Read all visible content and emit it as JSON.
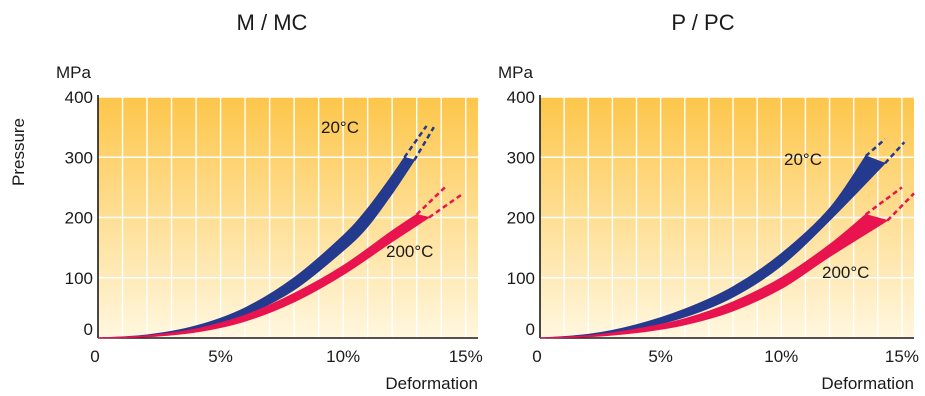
{
  "y_axis_title": "Pressure",
  "chart_data": [
    {
      "type": "area",
      "title": "M / MC",
      "xlabel": "Deformation",
      "ylabel": "MPa",
      "xlim": [
        0,
        15.5
      ],
      "ylim": [
        0,
        400
      ],
      "x_ticks": [
        "0",
        "5%",
        "10%",
        "15%"
      ],
      "y_ticks": [
        "0",
        "100",
        "200",
        "300",
        "400"
      ],
      "series": [
        {
          "name": "20°C",
          "color": "#243a8f",
          "upper": [
            [
              0,
              0
            ],
            [
              2,
              5
            ],
            [
              4,
              20
            ],
            [
              6,
              50
            ],
            [
              8,
              100
            ],
            [
              10,
              170
            ],
            [
              11,
              215
            ],
            [
              12,
              270
            ],
            [
              12.5,
              300
            ]
          ],
          "lower": [
            [
              0,
              0
            ],
            [
              2,
              3
            ],
            [
              4,
              14
            ],
            [
              6,
              38
            ],
            [
              8,
              80
            ],
            [
              10,
              145
            ],
            [
              11,
              185
            ],
            [
              12,
              240
            ],
            [
              12.9,
              295
            ]
          ],
          "ext_upper": [
            [
              12.5,
              300
            ],
            [
              13.4,
              352
            ]
          ],
          "ext_lower": [
            [
              12.9,
              295
            ],
            [
              13.7,
              350
            ]
          ]
        },
        {
          "name": "200°C",
          "color": "#e8134f",
          "upper": [
            [
              0,
              0
            ],
            [
              2,
              4
            ],
            [
              4,
              15
            ],
            [
              6,
              38
            ],
            [
              8,
              74
            ],
            [
              10,
              120
            ],
            [
              12,
              178
            ],
            [
              13,
              205
            ]
          ],
          "lower": [
            [
              0,
              0
            ],
            [
              2,
              2
            ],
            [
              4,
              10
            ],
            [
              6,
              28
            ],
            [
              8,
              60
            ],
            [
              10,
              105
            ],
            [
              12,
              160
            ],
            [
              13.5,
              200
            ]
          ],
          "ext_upper": [
            [
              13,
              205
            ],
            [
              14.2,
              252
            ]
          ],
          "ext_lower": [
            [
              13.5,
              200
            ],
            [
              14.9,
              240
            ]
          ]
        }
      ]
    },
    {
      "type": "area",
      "title": "P / PC",
      "xlabel": "Deformation",
      "ylabel": "MPa",
      "xlim": [
        0,
        15.5
      ],
      "ylim": [
        0,
        400
      ],
      "x_ticks": [
        "0",
        "5%",
        "10%",
        "15%"
      ],
      "y_ticks": [
        "0",
        "100",
        "200",
        "300",
        "400"
      ],
      "series": [
        {
          "name": "20°C",
          "color": "#243a8f",
          "upper": [
            [
              0,
              0
            ],
            [
              2,
              6
            ],
            [
              4,
              22
            ],
            [
              6,
              48
            ],
            [
              8,
              85
            ],
            [
              10,
              140
            ],
            [
              12,
              215
            ],
            [
              13.5,
              302
            ]
          ],
          "lower": [
            [
              0,
              0
            ],
            [
              2,
              4
            ],
            [
              4,
              15
            ],
            [
              6,
              35
            ],
            [
              8,
              68
            ],
            [
              10,
              120
            ],
            [
              12,
              195
            ],
            [
              14.3,
              290
            ]
          ],
          "ext_upper": [
            [
              13.5,
              302
            ],
            [
              14.3,
              330
            ]
          ],
          "ext_lower": [
            [
              14.3,
              290
            ],
            [
              15.1,
              325
            ]
          ]
        },
        {
          "name": "200°C",
          "color": "#e8134f",
          "upper": [
            [
              0,
              0
            ],
            [
              2,
              4
            ],
            [
              4,
              15
            ],
            [
              6,
              32
            ],
            [
              8,
              60
            ],
            [
              10,
              100
            ],
            [
              12,
              155
            ],
            [
              13.5,
              205
            ]
          ],
          "lower": [
            [
              0,
              0
            ],
            [
              2,
              2
            ],
            [
              4,
              9
            ],
            [
              6,
              22
            ],
            [
              8,
              45
            ],
            [
              10,
              82
            ],
            [
              12,
              135
            ],
            [
              14.4,
              195
            ]
          ],
          "ext_upper": [
            [
              13.5,
              205
            ],
            [
              15.0,
              250
            ]
          ],
          "ext_lower": [
            [
              14.4,
              195
            ],
            [
              15.5,
              240
            ]
          ]
        }
      ]
    }
  ]
}
